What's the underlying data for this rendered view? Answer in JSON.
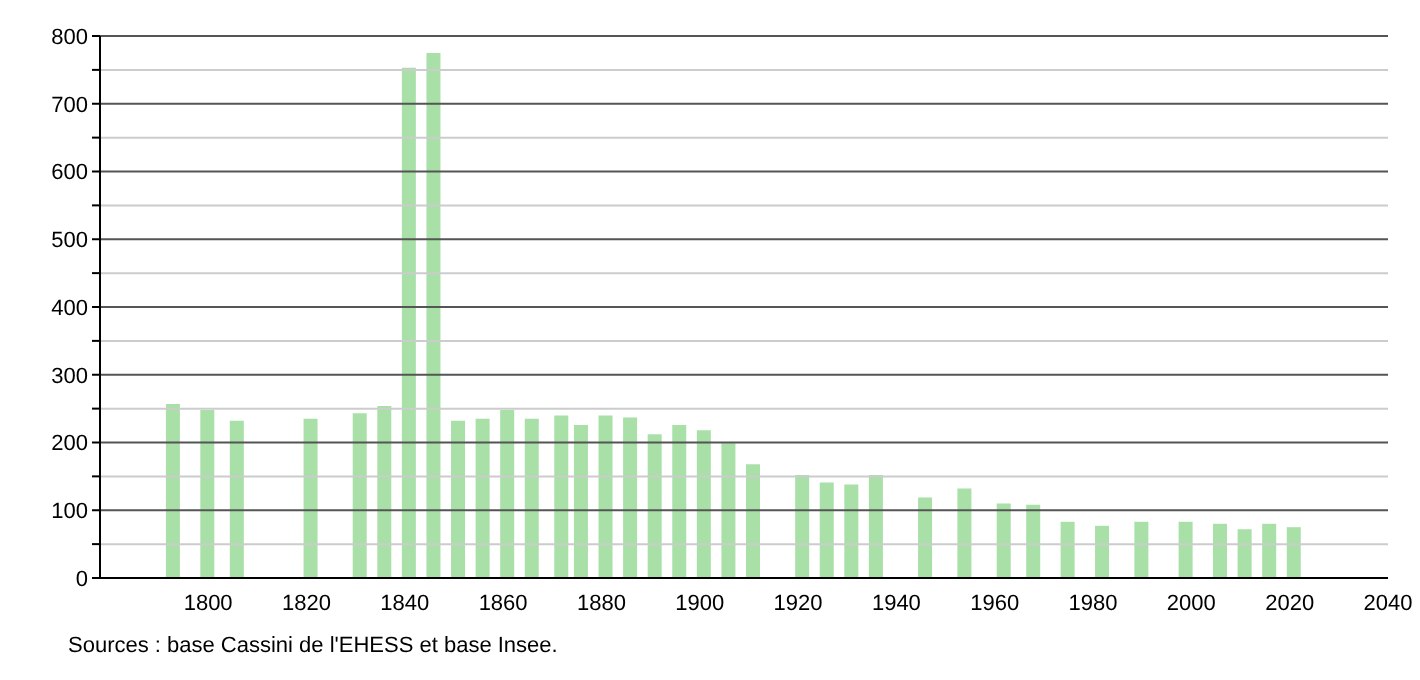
{
  "chart_data": {
    "type": "bar",
    "x": [
      1793,
      1800,
      1806,
      1821,
      1831,
      1836,
      1841,
      1846,
      1851,
      1856,
      1861,
      1866,
      1872,
      1876,
      1881,
      1886,
      1891,
      1896,
      1901,
      1906,
      1911,
      1921,
      1926,
      1931,
      1936,
      1946,
      1954,
      1962,
      1968,
      1975,
      1982,
      1990,
      1999,
      2006,
      2011,
      2016,
      2021
    ],
    "values": [
      257,
      248,
      232,
      235,
      243,
      254,
      753,
      775,
      232,
      235,
      248,
      235,
      240,
      226,
      240,
      237,
      212,
      226,
      218,
      199,
      168,
      152,
      141,
      138,
      152,
      119,
      132,
      110,
      108,
      83,
      77,
      83,
      83,
      80,
      72,
      80,
      75
    ],
    "color": "#a8e0a8",
    "xlim": [
      1778,
      2040
    ],
    "xticks": [
      1800,
      1820,
      1840,
      1860,
      1880,
      1900,
      1920,
      1940,
      1960,
      1980,
      2000,
      2020,
      2040
    ],
    "ylim": [
      0,
      800
    ],
    "yticks": [
      0,
      {
        "value": 50,
        "label": null
      },
      100,
      {
        "value": 150,
        "label": null
      },
      200,
      {
        "value": 250,
        "label": null
      },
      300,
      {
        "value": 350,
        "label": null
      },
      400,
      {
        "value": 450,
        "label": null
      },
      500,
      {
        "value": 550,
        "label": null
      },
      600,
      {
        "value": 650,
        "label": null
      },
      700,
      {
        "value": 750,
        "label": null
      },
      800
    ],
    "grid": true,
    "annotations": [
      "Sources : base Cassini de l'EHESS et base Insee."
    ]
  }
}
